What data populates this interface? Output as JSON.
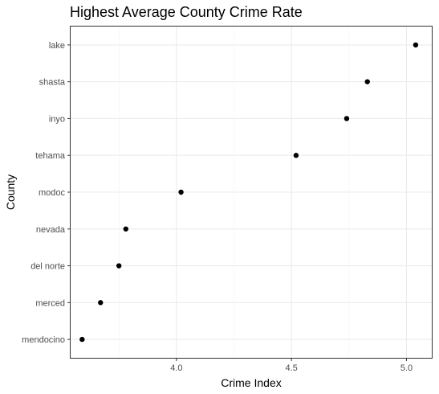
{
  "chart_data": {
    "type": "scatter",
    "title": "Highest Average County Crime Rate",
    "xlabel": "Crime Index",
    "ylabel": "County",
    "xlim": [
      3.54,
      5.11
    ],
    "x_ticks": [
      4.0,
      4.5,
      5.0
    ],
    "x_tick_labels": [
      "4.0",
      "4.5",
      "5.0"
    ],
    "x_minor_ticks": [
      3.75,
      4.25,
      4.75
    ],
    "grid": true,
    "categories": [
      "lake",
      "shasta",
      "inyo",
      "tehama",
      "modoc",
      "nevada",
      "del norte",
      "merced",
      "mendocino"
    ],
    "values": [
      5.04,
      4.83,
      4.74,
      4.52,
      4.02,
      3.78,
      3.75,
      3.67,
      3.59
    ]
  }
}
